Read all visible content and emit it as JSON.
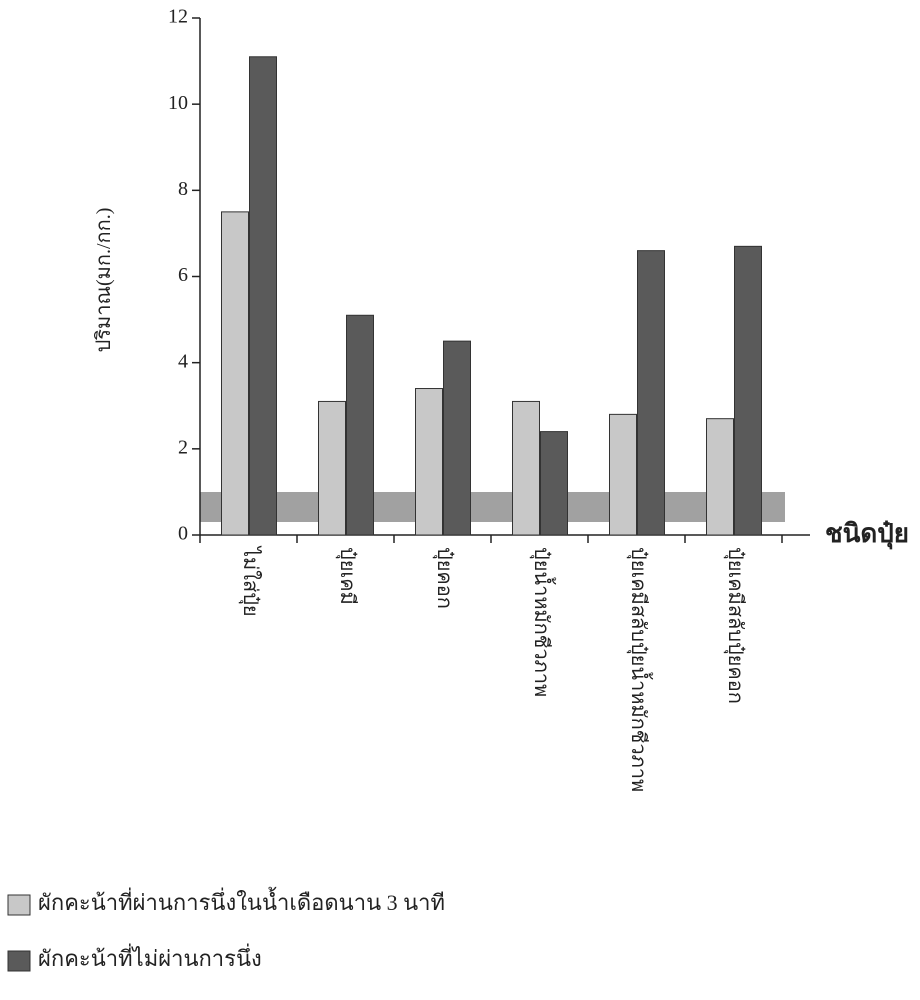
{
  "chart_data": {
    "type": "bar",
    "y_label": "ปริมาณ(มก./กก.)",
    "x_label": "ชนิดปุ๋ย",
    "categories": [
      "ไม่ใส่ปุ๋ย",
      "ปุ๋ยเคมี",
      "ปุ๋ยคอก",
      "ปุ๋ยน้ำหมักชีวภาพ",
      "ปุ๋ยเคมีสลับปุ๋ยน้ำหมักชีวภาพ",
      "ปุ๋ยเคมีสลับปุ๋ยคอก"
    ],
    "series": [
      {
        "name": "ผักคะน้าที่ผ่านการนึ่งในน้ำเดือดนาน 3 นาที",
        "color": "#c8c8c8",
        "values": [
          7.5,
          3.1,
          3.4,
          3.1,
          2.8,
          2.7
        ]
      },
      {
        "name": "ผักคะน้าที่ไม่ผ่านการนึ่ง",
        "color": "#5a5a5a",
        "values": [
          11.1,
          5.1,
          4.5,
          2.4,
          6.6,
          6.7
        ]
      }
    ],
    "ylim": [
      0,
      12
    ],
    "yticks": [
      0,
      2,
      4,
      6,
      8,
      10,
      12
    ]
  }
}
